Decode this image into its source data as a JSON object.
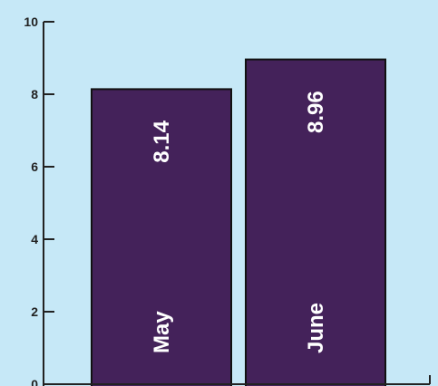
{
  "chart_data": {
    "type": "bar",
    "orientation": "vertical",
    "categories": [
      "May",
      "June"
    ],
    "values": [
      8.14,
      8.96
    ],
    "value_labels": [
      "8.14",
      "8.96"
    ],
    "ylim": [
      0,
      10
    ],
    "yticks": [
      "0",
      "2",
      "4",
      "6",
      "8",
      "10"
    ],
    "grid": false,
    "title": "",
    "xlabel": "",
    "ylabel": "",
    "colors": {
      "background": "#c6e8f7",
      "bar": "#44225a",
      "bar_border": "#111111",
      "axis": "#222222",
      "label": "#ffffff"
    }
  }
}
